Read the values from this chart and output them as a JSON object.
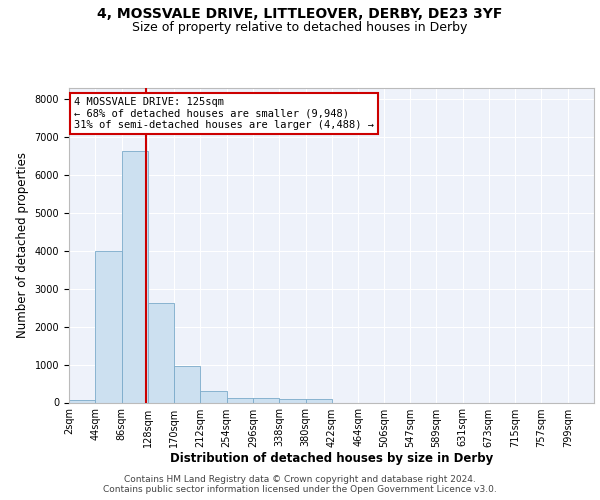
{
  "title_line1": "4, MOSSVALE DRIVE, LITTLEOVER, DERBY, DE23 3YF",
  "title_line2": "Size of property relative to detached houses in Derby",
  "xlabel": "Distribution of detached houses by size in Derby",
  "ylabel": "Number of detached properties",
  "footer_line1": "Contains HM Land Registry data © Crown copyright and database right 2024.",
  "footer_line2": "Contains public sector information licensed under the Open Government Licence v3.0.",
  "annotation_line1": "4 MOSSVALE DRIVE: 125sqm",
  "annotation_line2": "← 68% of detached houses are smaller (9,948)",
  "annotation_line3": "31% of semi-detached houses are larger (4,488) →",
  "property_size": 125,
  "bar_edges": [
    2,
    44,
    86,
    128,
    170,
    212,
    254,
    296,
    338,
    380,
    422,
    464,
    506,
    547,
    589,
    631,
    673,
    715,
    757,
    799,
    841
  ],
  "bar_heights": [
    75,
    3980,
    6620,
    2620,
    960,
    310,
    125,
    110,
    95,
    85,
    0,
    0,
    0,
    0,
    0,
    0,
    0,
    0,
    0,
    0
  ],
  "bar_color": "#cce0f0",
  "bar_edge_color": "#7aaaca",
  "vline_color": "#cc0000",
  "vline_x": 125,
  "annotation_box_color": "#cc0000",
  "annotation_text_color": "#000000",
  "background_color": "#eef2fa",
  "ylim": [
    0,
    8300
  ],
  "yticks": [
    0,
    1000,
    2000,
    3000,
    4000,
    5000,
    6000,
    7000,
    8000
  ],
  "grid_color": "#ffffff",
  "title_fontsize": 10,
  "subtitle_fontsize": 9,
  "axis_label_fontsize": 8.5,
  "tick_fontsize": 7,
  "footer_fontsize": 6.5,
  "annotation_fontsize": 7.5
}
